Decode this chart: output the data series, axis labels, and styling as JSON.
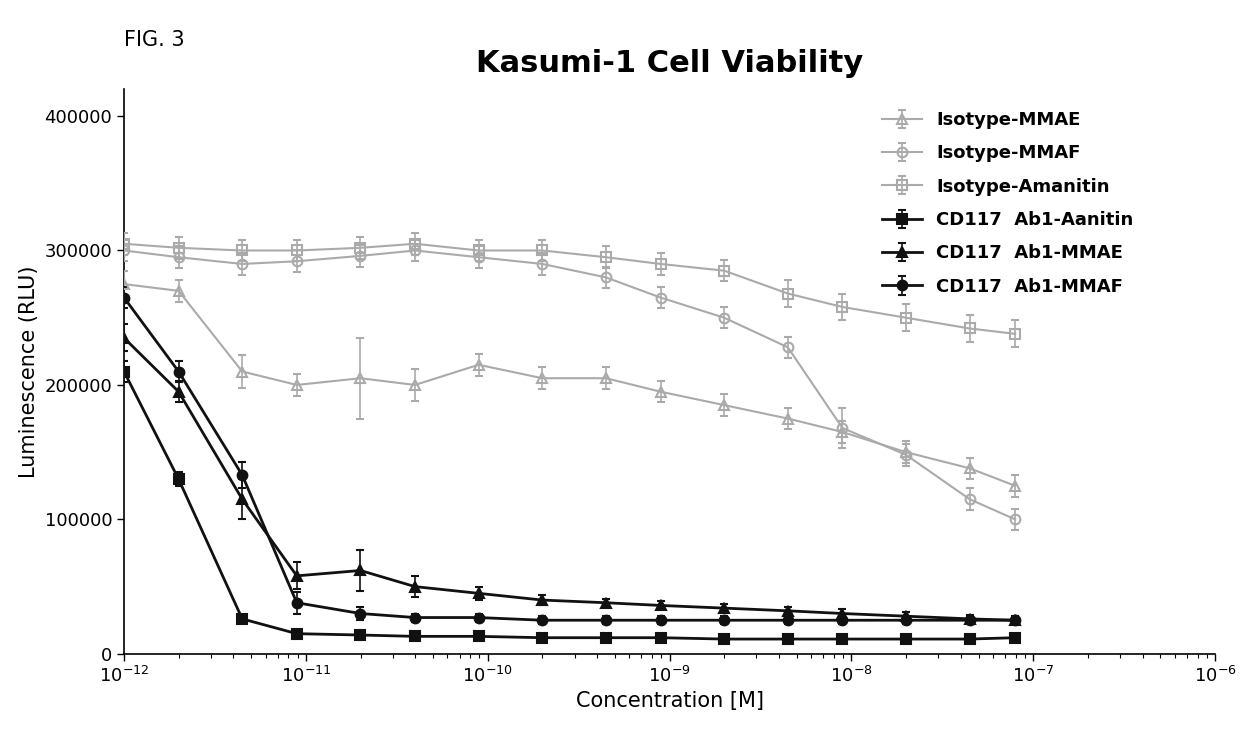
{
  "title": "Kasumi-1 Cell Viability",
  "fig_label": "FIG. 3",
  "xlabel": "Concentration [M]",
  "ylabel": "Luminescence (RLU)",
  "xlim_log": [
    -12,
    -6
  ],
  "ylim": [
    0,
    420000
  ],
  "yticks": [
    0,
    100000,
    200000,
    300000,
    400000
  ],
  "series": [
    {
      "label": "Isotype-MMAE",
      "color": "#aaaaaa",
      "marker": "^",
      "fillstyle": "none",
      "linestyle": "-",
      "linewidth": 1.5,
      "markersize": 7,
      "x_log": [
        -12.0,
        -11.7,
        -11.35,
        -11.05,
        -10.7,
        -10.4,
        -10.05,
        -9.7,
        -9.35,
        -9.05,
        -8.7,
        -8.35,
        -8.05,
        -7.7,
        -7.35,
        -7.1
      ],
      "y": [
        275000,
        270000,
        210000,
        200000,
        205000,
        200000,
        215000,
        205000,
        205000,
        195000,
        185000,
        175000,
        165000,
        150000,
        138000,
        125000
      ],
      "yerr": [
        10000,
        8000,
        12000,
        8000,
        30000,
        12000,
        8000,
        8000,
        8000,
        8000,
        8000,
        8000,
        8000,
        8000,
        8000,
        8000
      ]
    },
    {
      "label": "Isotype-MMAF",
      "color": "#aaaaaa",
      "marker": "o",
      "fillstyle": "none",
      "linestyle": "-",
      "linewidth": 1.5,
      "markersize": 7,
      "x_log": [
        -12.0,
        -11.7,
        -11.35,
        -11.05,
        -10.7,
        -10.4,
        -10.05,
        -9.7,
        -9.35,
        -9.05,
        -8.7,
        -8.35,
        -8.05,
        -7.7,
        -7.35,
        -7.1
      ],
      "y": [
        300000,
        295000,
        290000,
        292000,
        296000,
        300000,
        295000,
        290000,
        280000,
        265000,
        250000,
        228000,
        168000,
        148000,
        115000,
        100000
      ],
      "yerr": [
        8000,
        8000,
        8000,
        8000,
        8000,
        8000,
        8000,
        8000,
        8000,
        8000,
        8000,
        8000,
        15000,
        8000,
        8000,
        8000
      ]
    },
    {
      "label": "Isotype-Amanitin",
      "color": "#aaaaaa",
      "marker": "s",
      "fillstyle": "none",
      "linestyle": "-",
      "linewidth": 1.5,
      "markersize": 7,
      "x_log": [
        -12.0,
        -11.7,
        -11.35,
        -11.05,
        -10.7,
        -10.4,
        -10.05,
        -9.7,
        -9.35,
        -9.05,
        -8.7,
        -8.35,
        -8.05,
        -7.7,
        -7.35,
        -7.1
      ],
      "y": [
        305000,
        302000,
        300000,
        300000,
        302000,
        305000,
        300000,
        300000,
        295000,
        290000,
        285000,
        268000,
        258000,
        250000,
        242000,
        238000
      ],
      "yerr": [
        8000,
        8000,
        8000,
        8000,
        8000,
        8000,
        8000,
        8000,
        8000,
        8000,
        8000,
        10000,
        10000,
        10000,
        10000,
        10000
      ]
    },
    {
      "label": "CD117  Ab1-Aanitin",
      "color": "#111111",
      "marker": "s",
      "fillstyle": "full",
      "linestyle": "-",
      "linewidth": 2.0,
      "markersize": 7,
      "x_log": [
        -12.0,
        -11.7,
        -11.35,
        -11.05,
        -10.7,
        -10.4,
        -10.05,
        -9.7,
        -9.35,
        -9.05,
        -8.7,
        -8.35,
        -8.05,
        -7.7,
        -7.35,
        -7.1
      ],
      "y": [
        210000,
        130000,
        26000,
        15000,
        14000,
        13000,
        13000,
        12000,
        12000,
        12000,
        11000,
        11000,
        11000,
        11000,
        11000,
        12000
      ],
      "yerr": [
        8000,
        5000,
        3000,
        2000,
        1500,
        1000,
        1000,
        1000,
        1000,
        1000,
        1000,
        1000,
        1000,
        1000,
        1000,
        1000
      ]
    },
    {
      "label": "CD117  Ab1-MMAE",
      "color": "#111111",
      "marker": "^",
      "fillstyle": "full",
      "linestyle": "-",
      "linewidth": 2.0,
      "markersize": 7,
      "x_log": [
        -12.0,
        -11.7,
        -11.35,
        -11.05,
        -10.7,
        -10.4,
        -10.05,
        -9.7,
        -9.35,
        -9.05,
        -8.7,
        -8.35,
        -8.05,
        -7.7,
        -7.35,
        -7.1
      ],
      "y": [
        235000,
        195000,
        115000,
        58000,
        62000,
        50000,
        45000,
        40000,
        38000,
        36000,
        34000,
        32000,
        30000,
        28000,
        26000,
        25000
      ],
      "yerr": [
        10000,
        8000,
        15000,
        10000,
        15000,
        8000,
        5000,
        4000,
        3000,
        3000,
        3000,
        3000,
        3000,
        3000,
        3000,
        3000
      ]
    },
    {
      "label": "CD117  Ab1-MMAF",
      "color": "#111111",
      "marker": "o",
      "fillstyle": "full",
      "linestyle": "-",
      "linewidth": 2.0,
      "markersize": 7,
      "x_log": [
        -12.0,
        -11.7,
        -11.35,
        -11.05,
        -10.7,
        -10.4,
        -10.05,
        -9.7,
        -9.35,
        -9.05,
        -8.7,
        -8.35,
        -8.05,
        -7.7,
        -7.35,
        -7.1
      ],
      "y": [
        265000,
        210000,
        133000,
        38000,
        30000,
        27000,
        27000,
        25000,
        25000,
        25000,
        25000,
        25000,
        25000,
        25000,
        25000,
        25000
      ],
      "yerr": [
        8000,
        8000,
        10000,
        8000,
        5000,
        3000,
        3000,
        3000,
        3000,
        3000,
        3000,
        3000,
        3000,
        3000,
        3000,
        3000
      ]
    }
  ],
  "background_color": "#ffffff",
  "title_fontsize": 22,
  "label_fontsize": 15,
  "tick_fontsize": 13,
  "legend_fontsize": 13,
  "legend_bold": true
}
